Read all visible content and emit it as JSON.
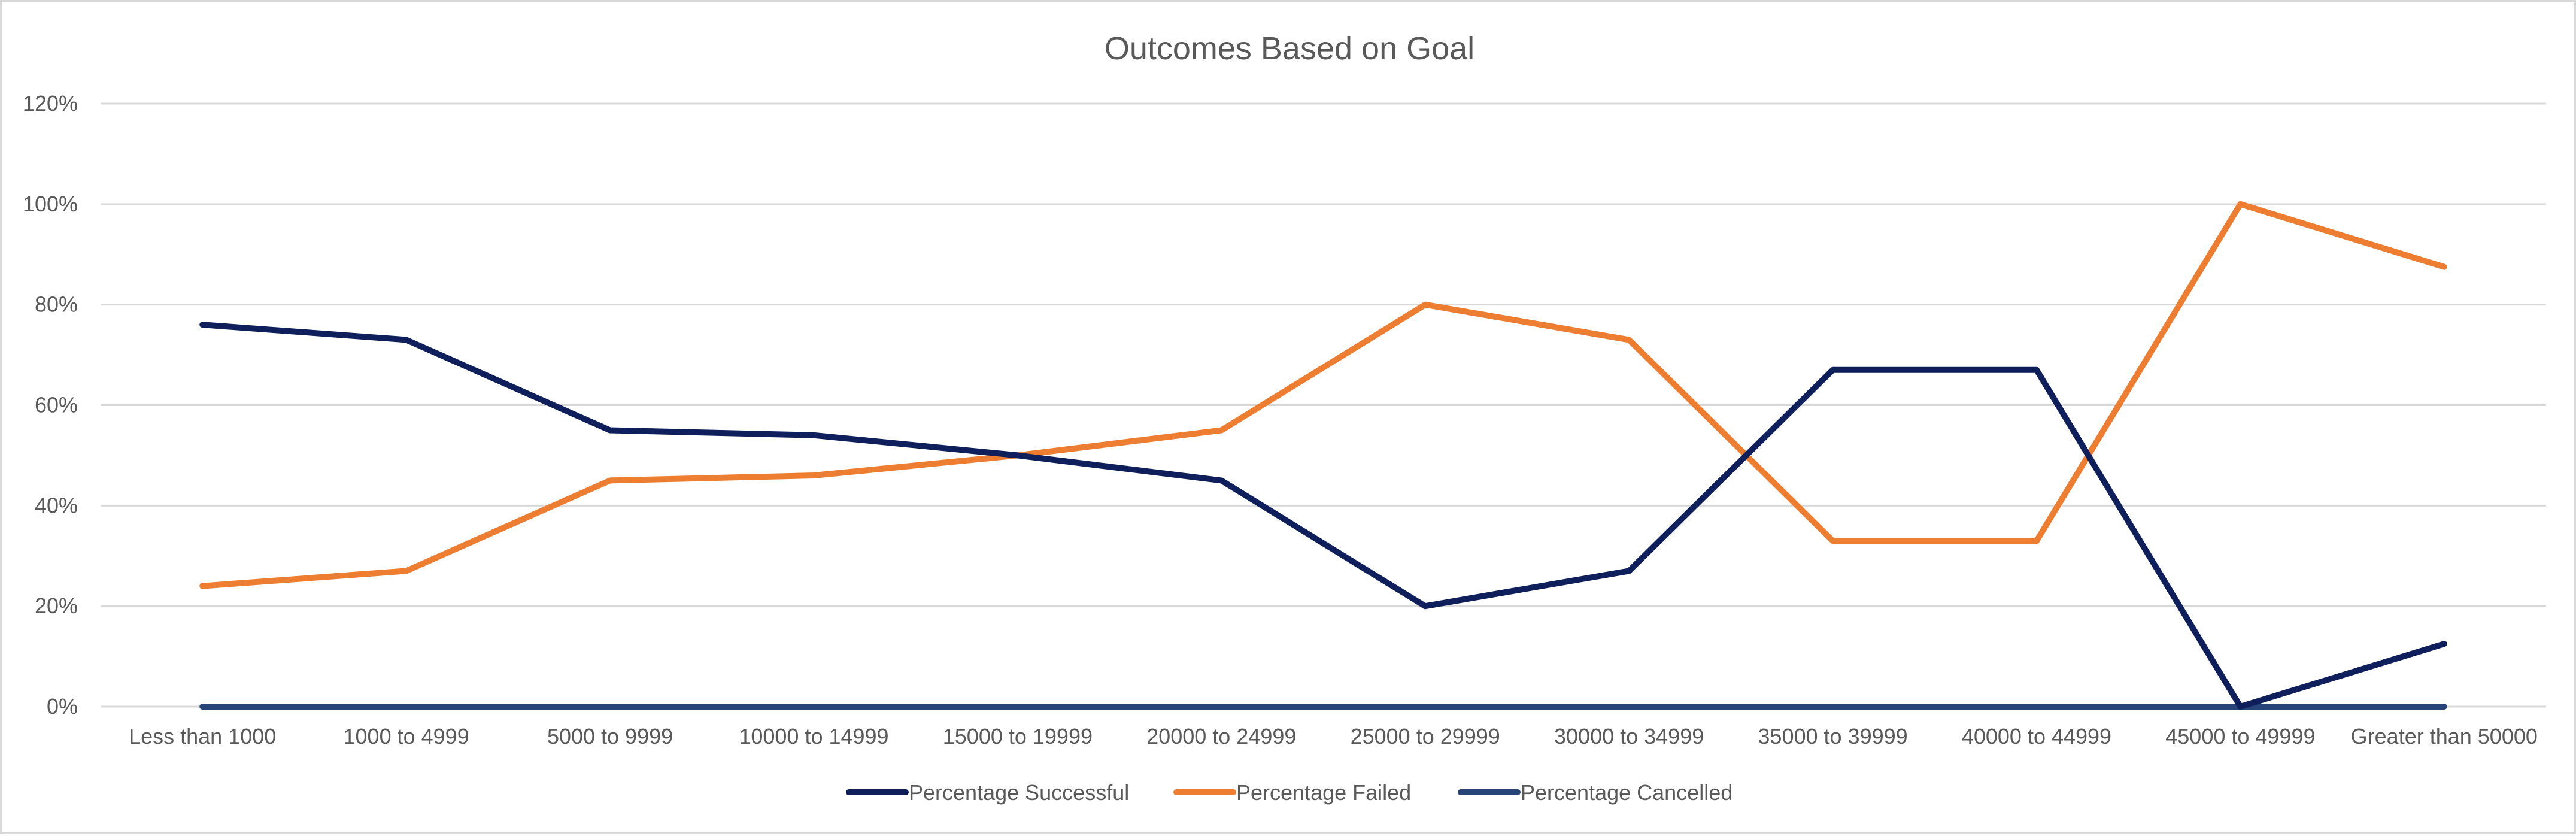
{
  "chart_data": {
    "type": "line",
    "title": "Outcomes Based on Goal",
    "xlabel": "",
    "ylabel": "",
    "categories": [
      "Less than 1000",
      "1000 to 4999",
      "5000 to 9999",
      "10000 to 14999",
      "15000 to 19999",
      "20000 to 24999",
      "25000 to 29999",
      "30000 to 34999",
      "35000 to 39999",
      "40000 to 44999",
      "45000 to 49999",
      "Greater than 50000"
    ],
    "ylim": [
      0,
      120
    ],
    "yticks": [
      "0%",
      "20%",
      "40%",
      "60%",
      "80%",
      "100%",
      "120%"
    ],
    "grid": true,
    "legend_position": "bottom",
    "series": [
      {
        "name": "Percentage Successful",
        "color": "#0e1f5b",
        "values": [
          76,
          73,
          55,
          54,
          50,
          45,
          20,
          27,
          67,
          67,
          0,
          12.5
        ]
      },
      {
        "name": "Percentage Failed",
        "color": "#ed7d31",
        "values": [
          24,
          27,
          45,
          46,
          50,
          55,
          80,
          73,
          33,
          33,
          100,
          87.5
        ]
      },
      {
        "name": "Percentage Cancelled",
        "color": "#264478",
        "values": [
          0,
          0,
          0,
          0,
          0,
          0,
          0,
          0,
          0,
          0,
          0,
          0
        ]
      }
    ]
  }
}
